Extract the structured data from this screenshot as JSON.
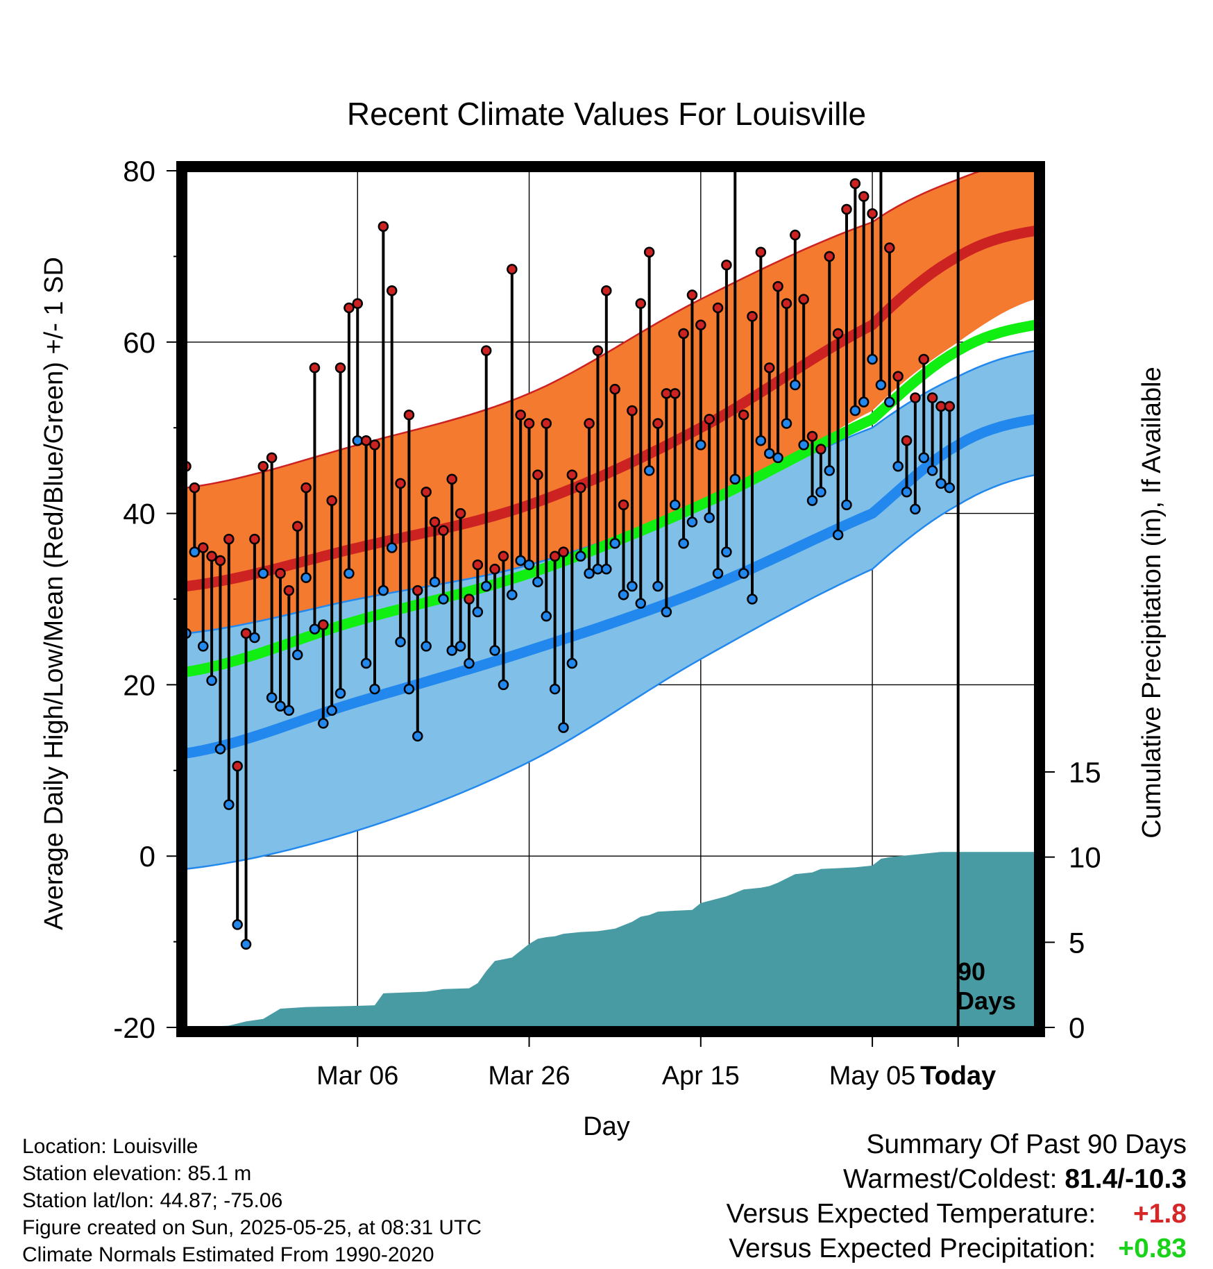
{
  "title": "Recent Climate Values For Louisville",
  "ylabel_left": "Average Daily High/Low/Mean (Red/Blue/Green) +/- 1 SD",
  "ylabel_right": "Cumulative Precipitation (in), If Available",
  "xlabel": "Day",
  "xticks": [
    "Mar 06",
    "Mar 26",
    "Apr 15",
    "May 05",
    "Today"
  ],
  "yticks_left": [
    "80",
    "60",
    "40",
    "20",
    "0",
    "-20"
  ],
  "yticks_right": [
    "15",
    "10",
    "5",
    "0"
  ],
  "today_label_1": "90",
  "today_label_2": "Days",
  "info": {
    "location": "Location: Louisville",
    "elevation": "Station elevation: 85.1 m",
    "latlon": "Station lat/lon: 44.87; -75.06",
    "created": "Figure created on Sun, 2025-05-25, at 08:31 UTC",
    "normals": "Climate Normals Estimated From 1990-2020"
  },
  "summary": {
    "heading": "Summary Of Past 90 Days",
    "extremes_label": "Warmest/Coldest:",
    "extremes_value": "81.4/-10.3",
    "temp_label": "Versus Expected Temperature:",
    "temp_value": "+1.8",
    "precip_label": "Versus Expected Precipitation:",
    "precip_value": "+0.83"
  },
  "colors": {
    "high_band": "#f47a30",
    "high_mean": "#cc2222",
    "low_band": "#80c0e8",
    "low_mean": "#2288ee",
    "mean_line": "#11ee11",
    "precip": "#489ba3",
    "high_point": "#cc2222",
    "low_point": "#2288ee"
  },
  "chart_data": {
    "type": "line",
    "x_unit": "days relative to today",
    "x_range": [
      -90,
      9
    ],
    "ylim_left": [
      -20,
      80
    ],
    "ylim_right": [
      0,
      15
    ],
    "normals": {
      "x": [
        -90,
        -70,
        -50,
        -30,
        -10,
        0,
        9
      ],
      "high_mean": [
        31.5,
        36,
        41,
        50,
        62,
        70,
        73
      ],
      "high_sd_upper": [
        43,
        48,
        54,
        65,
        74,
        79,
        81.5
      ],
      "high_sd_lower": [
        23,
        27,
        33,
        40,
        52,
        60,
        65
      ],
      "low_mean": [
        12,
        18,
        24,
        31,
        40,
        48,
        51
      ],
      "low_sd_upper": [
        26,
        30,
        34,
        41,
        50,
        56,
        59
      ],
      "low_sd_lower": [
        -1.5,
        3,
        11,
        23,
        33.5,
        41,
        44.5
      ],
      "mean": [
        21.5,
        27.5,
        33,
        41,
        51,
        59,
        62
      ]
    },
    "daily": {
      "x": [
        -90,
        -89,
        -88,
        -87,
        -86,
        -85,
        -84,
        -83,
        -82,
        -81,
        -80,
        -79,
        -78,
        -77,
        -76,
        -75,
        -74,
        -73,
        -72,
        -71,
        -70,
        -69,
        -68,
        -67,
        -66,
        -65,
        -64,
        -63,
        -62,
        -61,
        -60,
        -59,
        -58,
        -57,
        -56,
        -55,
        -54,
        -53,
        -52,
        -51,
        -50,
        -49,
        -48,
        -47,
        -46,
        -45,
        -44,
        -43,
        -42,
        -41,
        -40,
        -39,
        -38,
        -37,
        -36,
        -35,
        -34,
        -33,
        -32,
        -31,
        -30,
        -29,
        -28,
        -27,
        -26,
        -25,
        -24,
        -23,
        -22,
        -21,
        -20,
        -19,
        -18,
        -17,
        -16,
        -15,
        -14,
        -13,
        -12,
        -11,
        -10,
        -9,
        -8,
        -7,
        -6,
        -5,
        -4,
        -3,
        -2,
        -1
      ],
      "high": [
        45.5,
        43,
        36,
        35,
        34.5,
        37,
        10.5,
        26,
        37,
        45.5,
        46.5,
        33,
        31,
        38.5,
        43,
        57,
        27,
        41.5,
        57,
        64,
        64.5,
        48.5,
        48,
        73.5,
        66,
        43.5,
        51.5,
        31,
        42.5,
        39,
        38,
        44,
        40,
        30,
        34,
        59,
        33.5,
        35,
        68.5,
        51.5,
        50.5,
        44.5,
        50.5,
        35,
        35.5,
        44.5,
        43,
        50.5,
        59,
        66,
        54.5,
        41,
        52,
        64.5,
        70.5,
        50.5,
        54,
        54,
        61,
        65.5,
        62,
        51,
        64,
        69,
        80.5,
        51.5,
        63,
        70.5,
        57,
        66.5,
        64.5,
        72.5,
        65,
        49,
        47.5,
        70,
        61,
        75.5,
        78.5,
        77,
        75,
        81.4,
        71,
        56,
        48.5,
        53.5,
        58,
        53.5,
        52.5,
        52.5
      ],
      "low": [
        26,
        35.5,
        24.5,
        20.5,
        12.5,
        6,
        -8,
        -10.3,
        25.5,
        33,
        18.5,
        17.5,
        17,
        23.5,
        32.5,
        26.5,
        15.5,
        17,
        19,
        33,
        48.5,
        22.5,
        19.5,
        31,
        36,
        25,
        19.5,
        14,
        24.5,
        32,
        30,
        24,
        24.5,
        22.5,
        28.5,
        31.5,
        24,
        20,
        30.5,
        34.5,
        34,
        32,
        28,
        19.5,
        15,
        22.5,
        35,
        33,
        33.5,
        33.5,
        36.5,
        30.5,
        31.5,
        29.5,
        45,
        31.5,
        28.5,
        41,
        36.5,
        39,
        48,
        39.5,
        33,
        35.5,
        44,
        33,
        30,
        48.5,
        47,
        46.5,
        50.5,
        55,
        48,
        41.5,
        42.5,
        45,
        37.5,
        41,
        52,
        53,
        58,
        55,
        53,
        45.5,
        42.5,
        40.5,
        46.5,
        45,
        43.5,
        43
      ]
    },
    "precip": {
      "x": [
        -90,
        -85,
        -83,
        -81,
        -79,
        -76,
        -71,
        -68,
        -67,
        -62,
        -60,
        -57,
        -56,
        -55,
        -54,
        -53,
        -52,
        -50,
        -49,
        -48,
        -47,
        -46,
        -44,
        -42,
        -40,
        -38,
        -37,
        -36,
        -35,
        -33,
        -31,
        -30,
        -27,
        -26,
        -25,
        -23,
        -22,
        -21,
        -19,
        -17,
        -16,
        -14,
        -12,
        -10,
        -9,
        -8,
        -7,
        -6,
        -5,
        -4,
        -3,
        -2,
        -1,
        0,
        9
      ],
      "values": [
        0,
        0.1,
        0.35,
        0.5,
        1.1,
        1.2,
        1.25,
        1.3,
        2,
        2.1,
        2.25,
        2.3,
        2.6,
        3.3,
        3.9,
        4,
        4.1,
        4.9,
        5.2,
        5.3,
        5.35,
        5.5,
        5.6,
        5.65,
        5.8,
        6.2,
        6.5,
        6.6,
        6.8,
        6.85,
        6.9,
        7.3,
        7.7,
        7.9,
        8.1,
        8.2,
        8.3,
        8.5,
        9,
        9.1,
        9.3,
        9.35,
        9.4,
        9.5,
        9.9,
        10,
        10.05,
        10.1,
        10.15,
        10.2,
        10.25,
        10.3,
        10.3,
        10.3,
        10.3
      ]
    }
  }
}
